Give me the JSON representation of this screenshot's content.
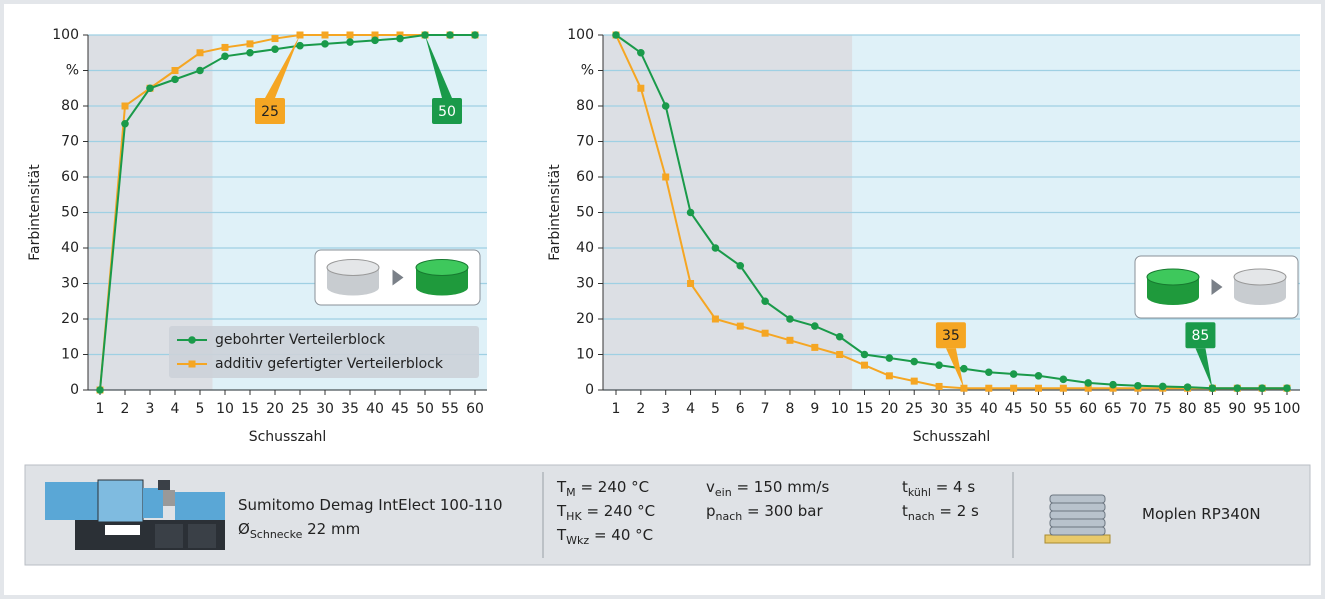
{
  "chart_data": [
    {
      "type": "line",
      "y_label": "Farbintensität",
      "x_label": "Schusszahl",
      "categories": [
        1,
        2,
        3,
        4,
        5,
        10,
        15,
        20,
        25,
        30,
        35,
        40,
        45,
        50,
        55,
        60
      ],
      "series": [
        {
          "name": "gebohrter Verteilerblock",
          "color": "#1a9a4a",
          "marker": "circle",
          "values": [
            0,
            75,
            85,
            87.5,
            90,
            94,
            95,
            96,
            97,
            97.5,
            98,
            98.5,
            99,
            100,
            100,
            100
          ]
        },
        {
          "name": "additiv gefertigter Verteilerblock",
          "color": "#f5a623",
          "marker": "square",
          "values": [
            0,
            80,
            85,
            90,
            95,
            96.5,
            97.5,
            99,
            100,
            100,
            100,
            100,
            100,
            100,
            100,
            100
          ]
        }
      ],
      "ylim": [
        0,
        100
      ],
      "yticks": [
        0,
        10,
        20,
        30,
        40,
        50,
        60,
        70,
        80,
        {
          "value": 90,
          "label": "%"
        },
        100
      ],
      "grid": true,
      "legend": "lower right",
      "annotations": [
        {
          "text": "25",
          "color": "#f5a623"
        },
        {
          "text": "50",
          "color": "#1a9a4a"
        }
      ]
    },
    {
      "type": "line",
      "y_label": "Farbintensität",
      "x_label": "Schusszahl",
      "categories": [
        1,
        2,
        3,
        4,
        5,
        6,
        7,
        8,
        9,
        10,
        15,
        20,
        25,
        30,
        35,
        40,
        45,
        50,
        55,
        60,
        65,
        70,
        75,
        80,
        85,
        90,
        95,
        100
      ],
      "series": [
        {
          "color": "#1a9a4a",
          "marker": "circle",
          "values": [
            100,
            95,
            80,
            50,
            40,
            35,
            25,
            20,
            18,
            15,
            10,
            9,
            8,
            7,
            6,
            5,
            4.5,
            4,
            3,
            2,
            1.5,
            1.2,
            1,
            0.8,
            0.5,
            0.5,
            0.5,
            0.5
          ]
        },
        {
          "color": "#f5a623",
          "marker": "square",
          "values": [
            100,
            85,
            60,
            30,
            20,
            18,
            16,
            14,
            12,
            10,
            7,
            4,
            2.5,
            1,
            0.5,
            0.5,
            0.5,
            0.5,
            0.5,
            0.5,
            0.5,
            0.5,
            0.5,
            0.5,
            0.5,
            0.5,
            0.5,
            0.5
          ]
        }
      ],
      "ylim": [
        0,
        100
      ],
      "yticks": [
        0,
        10,
        20,
        30,
        40,
        50,
        60,
        70,
        80,
        {
          "value": 90,
          "label": "%"
        },
        100
      ],
      "grid": true,
      "annotations": [
        {
          "text": "35",
          "color": "#f5a623"
        },
        {
          "text": "85",
          "color": "#1a9a4a"
        }
      ]
    }
  ],
  "info": {
    "machine": "Sumitomo Demag IntElect 100-110",
    "screw": {
      "sym": "Ø",
      "sub": "Schnecke",
      "val": " 22 mm"
    },
    "params": [
      {
        "sym": "T",
        "sub": "M",
        "val": " = 240 °C"
      },
      {
        "sym": "T",
        "sub": "HK",
        "val": " = 240 °C"
      },
      {
        "sym": "T",
        "sub": "Wkz",
        "val": " = 40 °C"
      },
      {
        "sym": "v",
        "sub": "ein",
        "val": " = 150 mm/s"
      },
      {
        "sym": "p",
        "sub": "nach",
        "val": " = 300 bar"
      },
      {
        "sym": "t",
        "sub": "kühl",
        "val": " = 4 s"
      },
      {
        "sym": "t",
        "sub": "nach",
        "val": " = 2 s"
      }
    ],
    "material": "Moplen RP340N"
  }
}
